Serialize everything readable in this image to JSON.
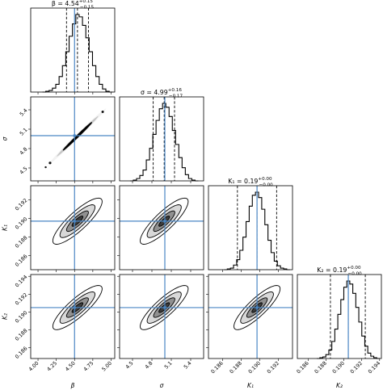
{
  "chart_data": {
    "type": "corner",
    "parameters": [
      {
        "label": "β",
        "title_main": "β = 4.54",
        "title_sup": "+0.15",
        "title_sub": "−0.15",
        "median": 4.54,
        "q16": 4.39,
        "q84": 4.69,
        "truth": 4.5,
        "range": [
          3.9,
          5.05
        ],
        "ticks": [
          4.0,
          4.25,
          4.5,
          4.75,
          5.0
        ],
        "tick_labels": [
          "4.00",
          "4.25",
          "4.50",
          "4.75",
          "5.00"
        ],
        "sd": 0.15
      },
      {
        "label": "σ",
        "title_main": "σ = 4.99",
        "title_sup": "+0.16",
        "title_sub": "−0.17",
        "median": 4.99,
        "q16": 4.82,
        "q84": 5.15,
        "truth": 5.0,
        "range": [
          4.3,
          5.6
        ],
        "ticks": [
          4.5,
          4.8,
          5.1,
          5.4
        ],
        "tick_labels": [
          "4.5",
          "4.8",
          "5.1",
          "5.4"
        ],
        "sd": 0.165
      },
      {
        "label": "K₁",
        "title_main": "K₁ = 0.19",
        "title_sup": "+0.00",
        "title_sub": "−0.00",
        "median": 0.1897,
        "q16": 0.1876,
        "q84": 0.1918,
        "truth": 0.1897,
        "range": [
          0.1845,
          0.1935
        ],
        "ticks": [
          0.186,
          0.188,
          0.19,
          0.192
        ],
        "tick_labels": [
          "0.186",
          "0.188",
          "0.190",
          "0.192"
        ],
        "sd": 0.0011
      },
      {
        "label": "K₂",
        "title_main": "K₂ = 0.19",
        "title_sup": "+0.00",
        "title_sub": "−0.00",
        "median": 0.1905,
        "q16": 0.1885,
        "q84": 0.1924,
        "truth": 0.1905,
        "range": [
          0.1848,
          0.1942
        ],
        "ticks": [
          0.186,
          0.188,
          0.19,
          0.192,
          0.194
        ],
        "tick_labels": [
          "0.186",
          "0.188",
          "0.190",
          "0.192",
          "0.194"
        ],
        "sd": 0.0011
      }
    ],
    "histograms": [
      [
        0,
        0.01,
        0.02,
        0.05,
        0.1,
        0.2,
        0.34,
        0.52,
        0.72,
        0.88,
        1.0,
        0.97,
        0.86,
        0.7,
        0.52,
        0.34,
        0.2,
        0.1,
        0.04,
        0.01,
        0
      ],
      [
        0,
        0.01,
        0.03,
        0.07,
        0.14,
        0.27,
        0.42,
        0.6,
        0.78,
        0.93,
        1.0,
        0.95,
        0.83,
        0.65,
        0.47,
        0.3,
        0.17,
        0.08,
        0.03,
        0.01,
        0
      ],
      [
        0,
        0.01,
        0.02,
        0.06,
        0.13,
        0.25,
        0.42,
        0.62,
        0.82,
        0.96,
        1.0,
        0.93,
        0.78,
        0.58,
        0.38,
        0.22,
        0.11,
        0.05,
        0.02,
        0.01,
        0
      ],
      [
        0,
        0.01,
        0.02,
        0.05,
        0.11,
        0.22,
        0.38,
        0.57,
        0.76,
        0.92,
        1.0,
        0.96,
        0.84,
        0.66,
        0.47,
        0.29,
        0.16,
        0.07,
        0.03,
        0.01,
        0
      ]
    ],
    "correlations": {
      "1-0": 0.995,
      "2-0": 0.85,
      "3-0": 0.85,
      "2-1": 0.85,
      "3-1": 0.85,
      "3-2": 0.85
    }
  }
}
